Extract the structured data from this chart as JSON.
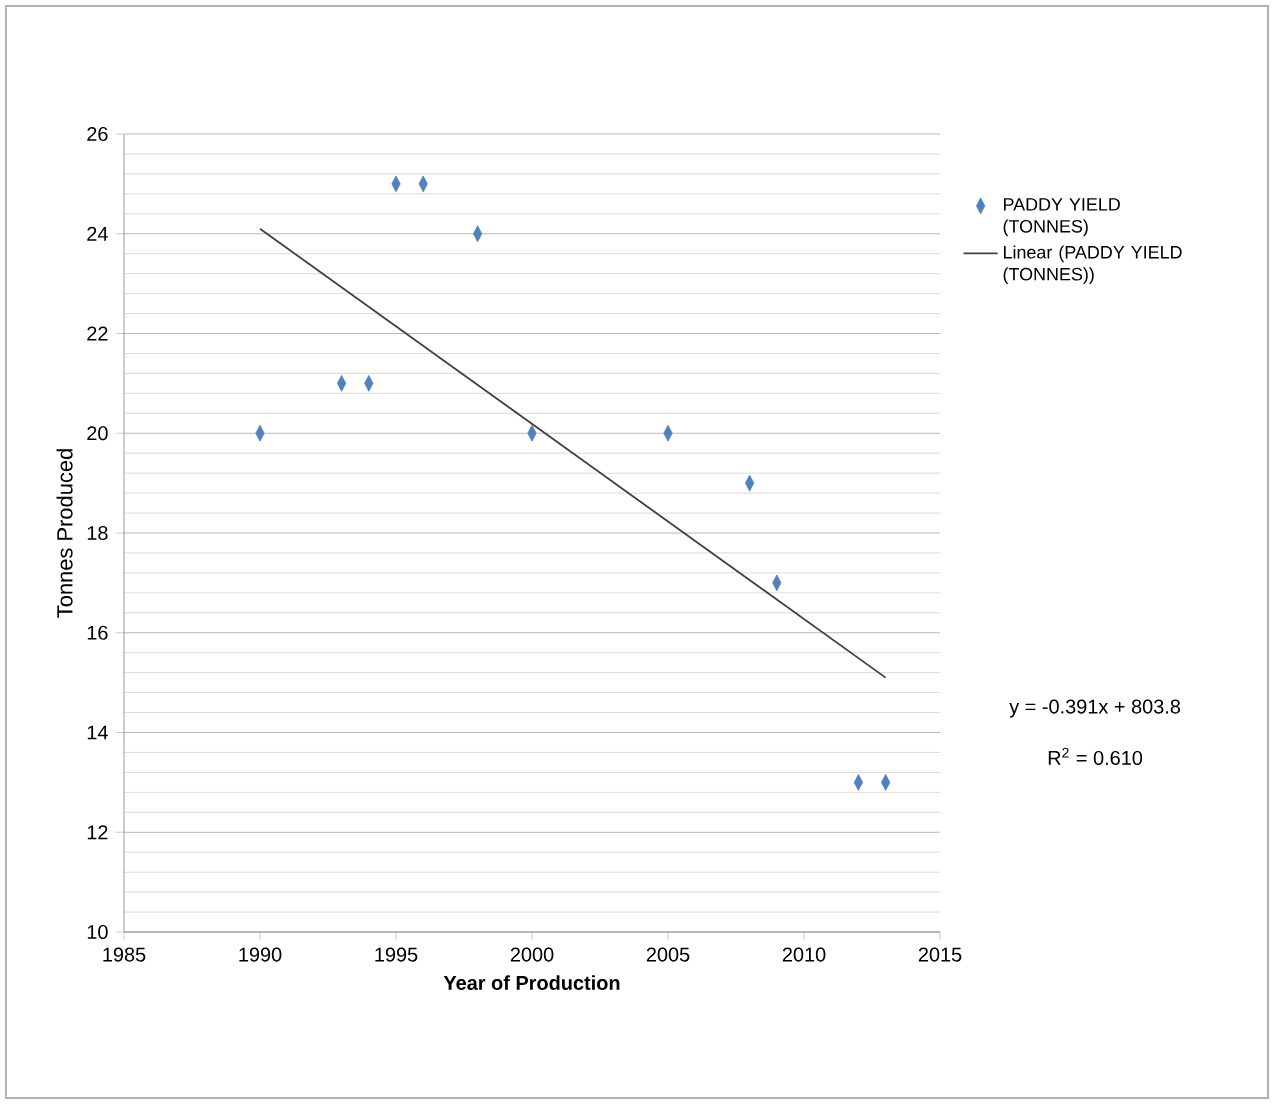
{
  "chart_data": {
    "type": "scatter",
    "xlabel": "Year of Production",
    "ylabel": "Tonnes Produced",
    "xlim": [
      1985,
      2015
    ],
    "xticks": [
      1985,
      1990,
      1995,
      2000,
      2005,
      2010,
      2015
    ],
    "ylim": [
      10,
      26
    ],
    "yticks": [
      10,
      12,
      14,
      16,
      18,
      20,
      22,
      24,
      26
    ],
    "grid": "y",
    "legend": "right",
    "series": [
      {
        "name": "PADDY YIELD (TONNES)",
        "color": "#4f81bd",
        "marker": "diamond",
        "x": [
          1990,
          1993,
          1994,
          1995,
          1996,
          1998,
          2000,
          2005,
          2008,
          2009,
          2012,
          2013
        ],
        "values": [
          20,
          21,
          21,
          25,
          25,
          24,
          20,
          20,
          19,
          17,
          13,
          13
        ]
      },
      {
        "name": "Linear (PADDY YIELD (TONNES))",
        "type": "line",
        "color": "#404040",
        "x": [
          1990,
          2013
        ],
        "values": [
          24.1,
          15.1
        ]
      }
    ],
    "annotations": [
      "y = -0.391x + 803.8",
      "R$^{2}$ = 0.610"
    ]
  }
}
